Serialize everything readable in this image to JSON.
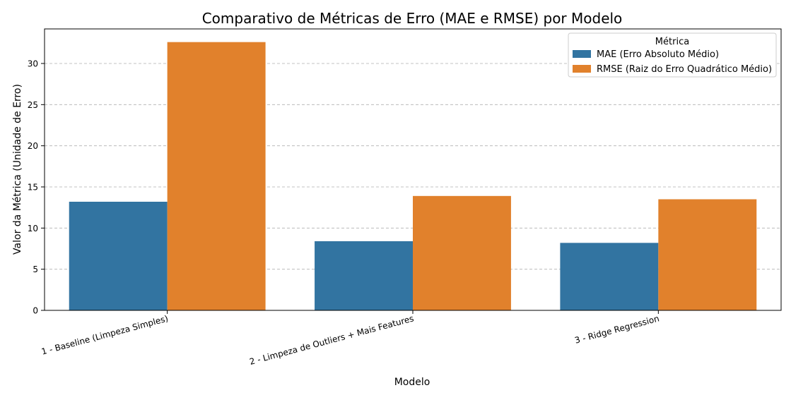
{
  "chart_data": {
    "type": "bar",
    "title": "Comparativo de Métricas de Erro (MAE e RMSE) por Modelo",
    "xlabel": "Modelo",
    "ylabel": "Valor da Métrica (Unidade de Erro)",
    "categories": [
      "1 - Baseline (Limpeza Simples)",
      "2 - Limpeza de Outliers + Mais Features",
      "3 - Ridge Regression"
    ],
    "series": [
      {
        "name": "MAE (Erro Absoluto Médio)",
        "color": "#3274a1",
        "values": [
          13.2,
          8.4,
          8.2
        ]
      },
      {
        "name": "RMSE (Raiz do Erro Quadrático Médio)",
        "color": "#e1812c",
        "values": [
          32.6,
          13.9,
          13.5
        ]
      }
    ],
    "ylim": [
      0,
      34.2
    ],
    "yticks": [
      0,
      5,
      10,
      15,
      20,
      25,
      30
    ],
    "grid": "y-dashed",
    "legend": {
      "title": "Métrica",
      "placement": "top-right"
    }
  }
}
